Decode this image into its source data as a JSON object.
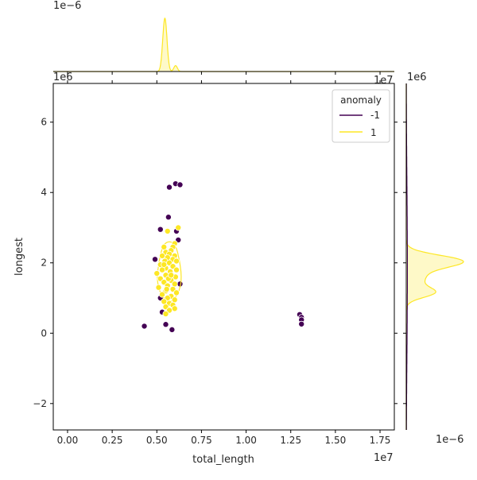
{
  "chart_data": {
    "type": "scatter",
    "xlabel": "total_length",
    "ylabel": "longest",
    "x_exponent": "1e7",
    "y_exponent": "1e6",
    "top_marginal_exponent": "1e−6",
    "right_marginal_exponent": "1e−6",
    "right_marginal_axis_exponent": "1e6",
    "xlim": [
      -800000,
      18300000
    ],
    "ylim": [
      -2750000,
      7100000
    ],
    "x_ticks": [
      {
        "value": 0,
        "label": "0.00"
      },
      {
        "value": 2500000,
        "label": "0.25"
      },
      {
        "value": 5000000,
        "label": "0.50"
      },
      {
        "value": 7500000,
        "label": "0.75"
      },
      {
        "value": 10000000,
        "label": "1.00"
      },
      {
        "value": 12500000,
        "label": "1.25"
      },
      {
        "value": 15000000,
        "label": "1.50"
      },
      {
        "value": 17500000,
        "label": "1.75"
      }
    ],
    "y_ticks": [
      {
        "value": -2000000,
        "label": "−2"
      },
      {
        "value": 0,
        "label": "0"
      },
      {
        "value": 2000000,
        "label": "2"
      },
      {
        "value": 4000000,
        "label": "4"
      },
      {
        "value": 6000000,
        "label": "6"
      }
    ],
    "legend": {
      "title": "anomaly",
      "placement": "top-right",
      "entries": [
        {
          "label": "-1",
          "color": "#440154"
        },
        {
          "label": "1",
          "color": "#fde725"
        }
      ]
    },
    "series": [
      {
        "name": "-1",
        "color": "#440154",
        "points": [
          [
            4300000,
            200000
          ],
          [
            5500000,
            250000
          ],
          [
            5850000,
            100000
          ],
          [
            5300000,
            600000
          ],
          [
            5200000,
            1000000
          ],
          [
            6300000,
            1400000
          ],
          [
            4900000,
            2100000
          ],
          [
            6200000,
            2650000
          ],
          [
            5200000,
            2950000
          ],
          [
            6100000,
            2900000
          ],
          [
            5650000,
            3300000
          ],
          [
            5700000,
            4150000
          ],
          [
            6050000,
            4250000
          ],
          [
            6300000,
            4220000
          ],
          [
            13000000,
            530000
          ],
          [
            13100000,
            450000
          ],
          [
            13100000,
            380000
          ],
          [
            13100000,
            260000
          ]
        ]
      },
      {
        "name": "1",
        "color": "#fde725",
        "points": [
          [
            5600000,
            2900000
          ],
          [
            6200000,
            3000000
          ],
          [
            6000000,
            2550000
          ],
          [
            5900000,
            2450000
          ],
          [
            5400000,
            2450000
          ],
          [
            5800000,
            2350000
          ],
          [
            5500000,
            2300000
          ],
          [
            5700000,
            2250000
          ],
          [
            6000000,
            2200000
          ],
          [
            5300000,
            2200000
          ],
          [
            5600000,
            2150000
          ],
          [
            5900000,
            2100000
          ],
          [
            5450000,
            2050000
          ],
          [
            6100000,
            2050000
          ],
          [
            5700000,
            2000000
          ],
          [
            5200000,
            1950000
          ],
          [
            5900000,
            1900000
          ],
          [
            5500000,
            1850000
          ],
          [
            6100000,
            1800000
          ],
          [
            5300000,
            1800000
          ],
          [
            5750000,
            1750000
          ],
          [
            5000000,
            1700000
          ],
          [
            5500000,
            1650000
          ],
          [
            6050000,
            1600000
          ],
          [
            5200000,
            1550000
          ],
          [
            5800000,
            1500000
          ],
          [
            5400000,
            1450000
          ],
          [
            6000000,
            1400000
          ],
          [
            5600000,
            1350000
          ],
          [
            5100000,
            1300000
          ],
          [
            5900000,
            1250000
          ],
          [
            5500000,
            1200000
          ],
          [
            6100000,
            1150000
          ],
          [
            5300000,
            1100000
          ],
          [
            5800000,
            1050000
          ],
          [
            5600000,
            1000000
          ],
          [
            6000000,
            950000
          ],
          [
            5400000,
            900000
          ],
          [
            5700000,
            850000
          ],
          [
            5900000,
            800000
          ],
          [
            5500000,
            750000
          ],
          [
            6000000,
            700000
          ],
          [
            5700000,
            650000
          ],
          [
            5500000,
            550000
          ],
          [
            5650000,
            1550000
          ],
          [
            5400000,
            1950000
          ],
          [
            5800000,
            1650000
          ],
          [
            5550000,
            1250000
          ]
        ]
      }
    ],
    "kde_1d": {
      "top_x": {
        "series": "1",
        "components": [
          {
            "center": 5450000,
            "sd": 120000,
            "weight": 0.9
          },
          {
            "center": 6050000,
            "sd": 100000,
            "weight": 0.1
          }
        ],
        "peak_fraction_of_panel_height": 0.93
      },
      "right_y": {
        "series": "1",
        "components": [
          {
            "center": 2050000,
            "sd": 170000,
            "weight": 0.55
          },
          {
            "center": 1150000,
            "sd": 140000,
            "weight": 0.25
          },
          {
            "center": 1600000,
            "sd": 300000,
            "weight": 0.2
          }
        ],
        "peak_fraction_of_panel_width": 0.9
      }
    }
  }
}
